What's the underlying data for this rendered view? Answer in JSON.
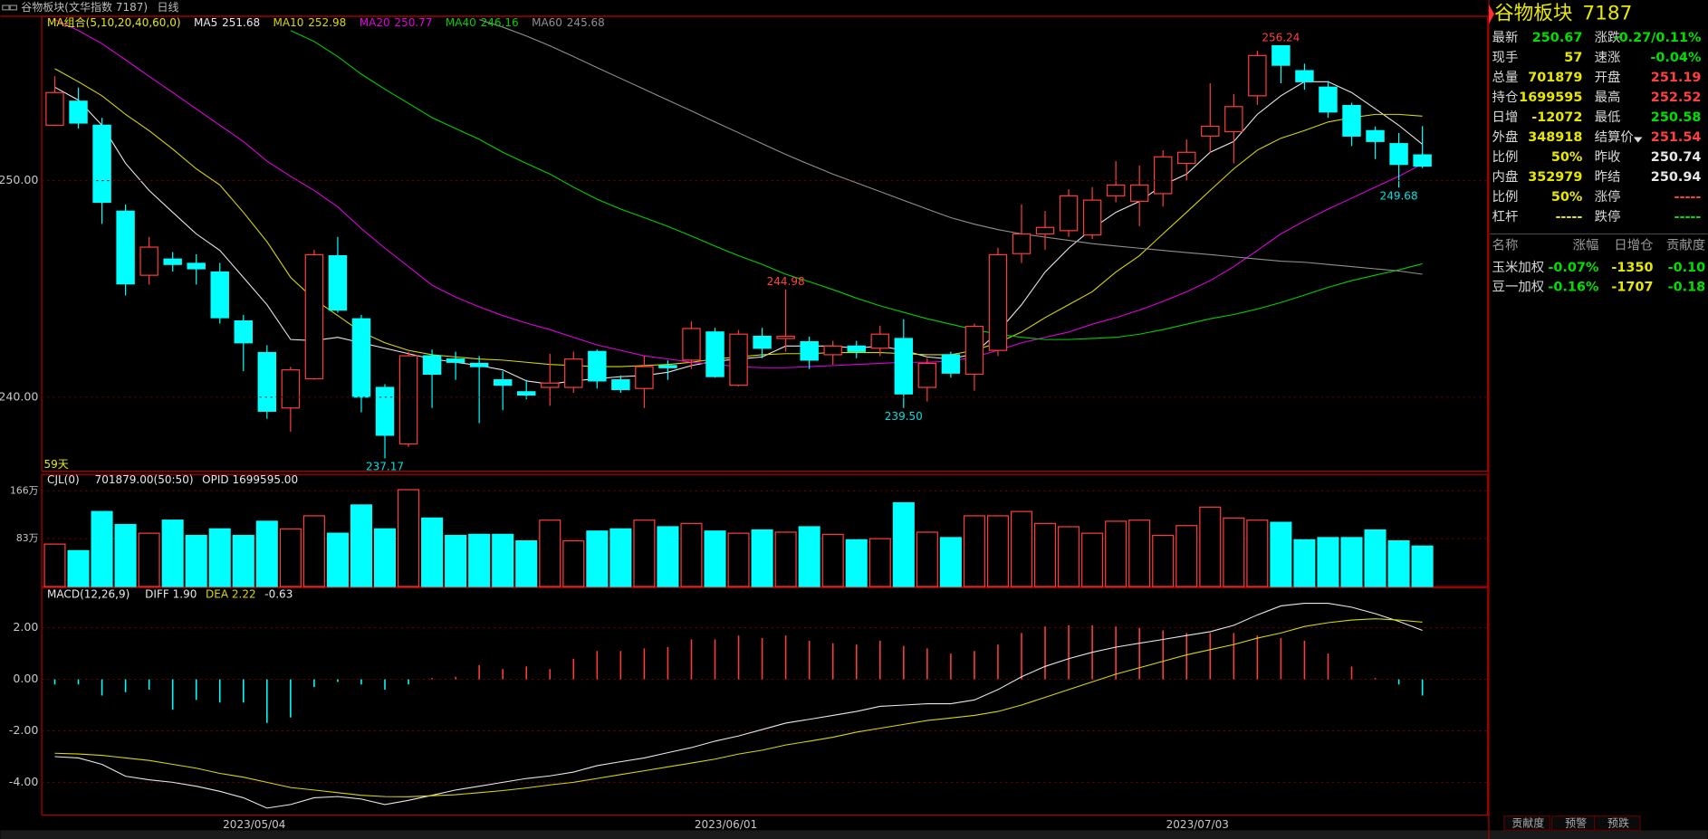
{
  "header": {
    "title": "谷物板块(文华指数 7187)",
    "period": "日线"
  },
  "chart_data": [
    {
      "type": "candlestick",
      "name": "MA组合(5,10,20,40,60,0)",
      "footnote": "59天",
      "categories": [
        null,
        null,
        null,
        null,
        null,
        null,
        null,
        null,
        "2023/05/04",
        null,
        null,
        null,
        null,
        null,
        null,
        null,
        null,
        null,
        null,
        null,
        null,
        null,
        null,
        null,
        null,
        null,
        null,
        null,
        "2023/06/01",
        null,
        null,
        null,
        null,
        null,
        null,
        null,
        null,
        null,
        null,
        null,
        null,
        null,
        null,
        null,
        null,
        null,
        null,
        null,
        "2023/07/03",
        null,
        null,
        null,
        null,
        null,
        null,
        null,
        null,
        null,
        null
      ],
      "open": [
        252.56,
        253.67,
        252.56,
        248.59,
        245.63,
        246.38,
        246.18,
        245.78,
        243.52,
        242.06,
        239.5,
        240.85,
        246.53,
        243.62,
        240.45,
        237.84,
        241.91,
        241.76,
        241.56,
        240.8,
        240.25,
        240.45,
        240.45,
        242.11,
        240.8,
        240.4,
        241.46,
        241.71,
        243.01,
        240.55,
        242.81,
        242.71,
        242.56,
        241.96,
        242.36,
        242.26,
        242.71,
        240.45,
        241.96,
        241.06,
        242.16,
        246.63,
        247.54,
        247.69,
        247.49,
        249.3,
        249.05,
        249.4,
        250.8,
        252.06,
        252.26,
        253.92,
        256.23,
        255.08,
        254.32,
        253.47,
        252.31,
        251.71,
        251.19
      ],
      "high": [
        254.82,
        254.3,
        252.9,
        248.9,
        247.4,
        246.7,
        246.6,
        246.2,
        243.8,
        242.4,
        241.4,
        246.8,
        247.4,
        243.8,
        240.6,
        242.1,
        242.2,
        242.1,
        241.9,
        241.2,
        240.8,
        242.0,
        242.1,
        242.2,
        241.0,
        241.9,
        241.7,
        243.5,
        243.2,
        243.1,
        243.2,
        244.98,
        242.8,
        242.6,
        242.6,
        243.3,
        243.6,
        241.8,
        242.1,
        243.4,
        246.9,
        248.9,
        248.6,
        249.6,
        249.7,
        250.9,
        250.7,
        251.4,
        251.9,
        254.5,
        254.0,
        256.0,
        256.24,
        255.4,
        254.6,
        253.6,
        252.5,
        252.2,
        252.52
      ],
      "low": [
        252.56,
        252.4,
        248.0,
        244.7,
        245.2,
        245.8,
        245.2,
        243.4,
        241.2,
        239.0,
        238.4,
        240.8,
        243.9,
        239.3,
        237.17,
        237.7,
        239.5,
        240.8,
        238.8,
        239.4,
        239.9,
        239.6,
        240.2,
        240.4,
        240.2,
        239.5,
        240.8,
        241.3,
        240.9,
        240.5,
        241.8,
        242.1,
        241.3,
        241.5,
        241.8,
        241.9,
        239.5,
        239.8,
        240.9,
        240.3,
        241.9,
        246.2,
        246.8,
        247.4,
        247.3,
        249.0,
        247.9,
        248.8,
        250.0,
        251.3,
        250.8,
        253.5,
        254.5,
        254.2,
        252.9,
        251.6,
        251.0,
        249.68,
        250.58
      ],
      "close": [
        254.07,
        252.66,
        249.0,
        245.23,
        246.93,
        246.13,
        245.93,
        243.67,
        242.51,
        239.35,
        241.26,
        246.58,
        244.02,
        240.0,
        238.24,
        241.91,
        241.06,
        241.61,
        241.41,
        240.55,
        240.1,
        240.65,
        241.76,
        240.75,
        240.35,
        241.41,
        241.36,
        243.17,
        240.95,
        242.91,
        242.26,
        242.81,
        241.71,
        242.36,
        242.11,
        242.91,
        240.15,
        241.56,
        241.11,
        243.27,
        246.58,
        247.54,
        247.84,
        249.3,
        249.1,
        249.8,
        249.8,
        251.1,
        251.31,
        252.51,
        253.42,
        255.78,
        255.33,
        254.57,
        253.17,
        252.06,
        251.81,
        250.75,
        250.67
      ],
      "high_labels": [
        null,
        null,
        null,
        null,
        null,
        null,
        null,
        null,
        null,
        null,
        null,
        null,
        null,
        null,
        null,
        null,
        null,
        null,
        null,
        null,
        null,
        null,
        null,
        null,
        null,
        null,
        null,
        null,
        null,
        null,
        null,
        "244.98",
        null,
        null,
        null,
        null,
        null,
        null,
        null,
        null,
        null,
        null,
        null,
        null,
        null,
        null,
        null,
        null,
        null,
        null,
        null,
        null,
        "256.24",
        null,
        null,
        null,
        null,
        null,
        null
      ],
      "low_labels": [
        null,
        null,
        null,
        null,
        null,
        null,
        null,
        null,
        null,
        null,
        null,
        null,
        null,
        null,
        "237.17",
        null,
        null,
        null,
        null,
        null,
        null,
        null,
        null,
        null,
        null,
        null,
        null,
        null,
        null,
        null,
        null,
        null,
        null,
        null,
        null,
        null,
        "239.50",
        null,
        null,
        null,
        null,
        null,
        null,
        null,
        null,
        null,
        null,
        null,
        null,
        null,
        null,
        null,
        null,
        null,
        null,
        null,
        null,
        "249.68",
        null
      ],
      "up_color": "#ff3c3c",
      "down_color": "#00ffff",
      "ylim": [
        236.58,
        257.59
      ],
      "yticks": [
        {
          "value": 240,
          "label": "240.00"
        },
        {
          "value": 250,
          "label": "250.00"
        }
      ],
      "grid": true,
      "overlays": [
        {
          "name": "MA5",
          "color": "#e8e8e8",
          "values": [
            254.32,
            253.72,
            252.56,
            250.8,
            249.55,
            248.54,
            247.54,
            246.78,
            245.53,
            244.27,
            242.66,
            242.61,
            242.76,
            242.51,
            242.26,
            242.01,
            241.76,
            241.61,
            241.46,
            241.26,
            240.75,
            240.6,
            240.75,
            240.85,
            240.95,
            241.0,
            241.15,
            241.46,
            241.66,
            241.76,
            241.86,
            242.36,
            242.36,
            242.36,
            242.26,
            242.36,
            242.16,
            241.86,
            241.76,
            242.01,
            243.01,
            244.27,
            245.78,
            246.88,
            247.79,
            248.54,
            249.04,
            249.8,
            250.3,
            251.31,
            251.81,
            253.06,
            253.92,
            254.57,
            254.57,
            254.07,
            253.32,
            252.56,
            251.68
          ]
        },
        {
          "name": "MA10",
          "color": "#d8d800",
          "values": [
            255.17,
            254.57,
            253.92,
            253.06,
            252.31,
            251.46,
            250.55,
            249.8,
            248.54,
            247.18,
            245.53,
            244.52,
            243.77,
            243.01,
            242.51,
            242.16,
            241.96,
            241.86,
            241.76,
            241.71,
            241.61,
            241.51,
            241.46,
            241.41,
            241.41,
            241.46,
            241.51,
            241.61,
            241.76,
            241.86,
            241.96,
            242.01,
            242.01,
            242.06,
            242.06,
            242.06,
            242.01,
            241.96,
            241.96,
            242.16,
            242.51,
            243.01,
            243.67,
            244.27,
            244.87,
            245.78,
            246.53,
            247.54,
            248.54,
            249.55,
            250.55,
            251.41,
            251.96,
            252.31,
            252.71,
            252.91,
            253.06,
            253.06,
            252.98
          ]
        },
        {
          "name": "MA20",
          "color": "#e000e0",
          "values": [
            257.44,
            256.93,
            256.33,
            255.58,
            254.82,
            254.07,
            253.32,
            252.56,
            251.81,
            250.9,
            250.2,
            249.55,
            248.79,
            247.79,
            246.88,
            246.03,
            245.17,
            244.62,
            244.17,
            243.77,
            243.42,
            243.12,
            242.76,
            242.41,
            242.16,
            241.91,
            241.76,
            241.61,
            241.51,
            241.41,
            241.36,
            241.36,
            241.41,
            241.46,
            241.51,
            241.56,
            241.61,
            241.61,
            241.66,
            241.86,
            242.16,
            242.51,
            242.76,
            243.01,
            243.37,
            243.67,
            244.02,
            244.42,
            244.87,
            245.38,
            246.03,
            246.78,
            247.54,
            248.14,
            248.69,
            249.19,
            249.7,
            250.2,
            250.77
          ]
        },
        {
          "name": "MA40",
          "color": "#00d000",
          "values": [
            null,
            null,
            null,
            null,
            null,
            null,
            null,
            null,
            null,
            null,
            256.93,
            256.43,
            255.73,
            254.92,
            254.22,
            253.57,
            252.91,
            252.41,
            251.91,
            251.31,
            250.8,
            250.3,
            249.7,
            249.14,
            248.69,
            248.29,
            247.89,
            247.44,
            246.98,
            246.53,
            246.13,
            245.68,
            245.33,
            244.97,
            244.57,
            244.22,
            243.92,
            243.62,
            243.37,
            243.12,
            242.91,
            242.76,
            242.66,
            242.66,
            242.71,
            242.76,
            242.91,
            243.12,
            243.37,
            243.62,
            243.82,
            244.07,
            244.37,
            244.72,
            245.07,
            245.38,
            245.63,
            245.88,
            246.16
          ]
        },
        {
          "name": "MA60",
          "color": "#909090",
          "values": [
            null,
            null,
            null,
            null,
            null,
            null,
            null,
            null,
            null,
            null,
            null,
            null,
            null,
            null,
            null,
            null,
            null,
            null,
            257.44,
            257.09,
            256.68,
            256.23,
            255.73,
            255.22,
            254.72,
            254.22,
            253.72,
            253.22,
            252.71,
            252.21,
            251.71,
            251.21,
            250.75,
            250.3,
            249.9,
            249.5,
            249.09,
            248.69,
            248.29,
            247.99,
            247.74,
            247.54,
            247.39,
            247.24,
            247.09,
            246.98,
            246.88,
            246.78,
            246.68,
            246.58,
            246.48,
            246.38,
            246.28,
            246.23,
            246.13,
            246.03,
            245.93,
            245.83,
            245.68
          ]
        }
      ]
    },
    {
      "type": "volume",
      "name": "CJL(0)",
      "legend": [
        "701879.00(50:50)",
        "OPID 1699595.00"
      ],
      "values": [
        73.6,
        62.2,
        130.1,
        107.5,
        92.4,
        115.1,
        88.6,
        100.0,
        88.6,
        113.2,
        100.0,
        122.6,
        92.4,
        141.5,
        100.0,
        167.9,
        118.8,
        88.6,
        90.5,
        90.5,
        79.2,
        115.1,
        79.2,
        96.2,
        100.0,
        115.1,
        103.7,
        109.4,
        96.2,
        92.4,
        98.1,
        94.3,
        103.7,
        90.5,
        81.1,
        83.0,
        145.2,
        94.3,
        84.9,
        122.6,
        122.6,
        130.1,
        109.4,
        103.7,
        92.4,
        113.2,
        115.1,
        88.6,
        105.6,
        137.7,
        118.8,
        115.1,
        111.3,
        81.1,
        84.9,
        84.9,
        98.1,
        79.2,
        70.19
      ],
      "ylim": [
        0,
        194.3
      ],
      "yticks": [
        {
          "value": 83,
          "label": "83万"
        },
        {
          "value": 166,
          "label": "166万"
        }
      ],
      "grid": true
    },
    {
      "type": "macd",
      "name": "MACD(12,26,9)",
      "legend": [
        "DIFF 1.90",
        "DEA 2.22",
        "-0.63"
      ],
      "values": [
        -0.2,
        -0.2,
        -0.63,
        -0.5,
        -0.4,
        -1.18,
        -0.8,
        -0.9,
        -0.9,
        -1.69,
        -1.48,
        -0.3,
        -0.1,
        -0.2,
        -0.4,
        -0.2,
        0.05,
        0.1,
        0.55,
        0.4,
        0.5,
        0.4,
        0.8,
        1.1,
        1.1,
        1.2,
        1.25,
        1.55,
        1.55,
        1.7,
        1.6,
        1.7,
        1.5,
        1.4,
        1.35,
        1.5,
        1.3,
        1.2,
        1.0,
        1.1,
        1.35,
        1.8,
        2.05,
        2.1,
        2.1,
        2.05,
        2.0,
        1.9,
        1.8,
        1.8,
        1.8,
        1.7,
        1.6,
        1.5,
        1.0,
        0.5,
        0.05,
        -0.2,
        -0.63
      ],
      "series": [
        {
          "name": "DIFF",
          "color": "#e8e8e8",
          "values": [
            -3.0,
            -3.05,
            -3.3,
            -3.76,
            -3.9,
            -4.0,
            -4.15,
            -4.35,
            -4.6,
            -5.0,
            -4.86,
            -4.6,
            -4.55,
            -4.65,
            -4.86,
            -4.7,
            -4.5,
            -4.3,
            -4.15,
            -4.0,
            -3.85,
            -3.75,
            -3.6,
            -3.35,
            -3.2,
            -3.05,
            -2.85,
            -2.65,
            -2.4,
            -2.2,
            -1.95,
            -1.7,
            -1.55,
            -1.4,
            -1.25,
            -1.05,
            -1.0,
            -0.95,
            -0.95,
            -0.8,
            -0.4,
            0.1,
            0.5,
            0.8,
            1.05,
            1.25,
            1.4,
            1.55,
            1.7,
            1.85,
            2.1,
            2.5,
            2.85,
            2.95,
            2.95,
            2.8,
            2.55,
            2.25,
            1.9
          ]
        },
        {
          "name": "DEA",
          "color": "#d8d800",
          "values": [
            -2.87,
            -2.9,
            -2.95,
            -3.05,
            -3.15,
            -3.3,
            -3.45,
            -3.65,
            -3.8,
            -4.0,
            -4.2,
            -4.3,
            -4.4,
            -4.5,
            -4.55,
            -4.56,
            -4.52,
            -4.48,
            -4.4,
            -4.32,
            -4.22,
            -4.1,
            -4.0,
            -3.85,
            -3.7,
            -3.55,
            -3.4,
            -3.25,
            -3.1,
            -2.9,
            -2.75,
            -2.55,
            -2.4,
            -2.25,
            -2.05,
            -1.9,
            -1.75,
            -1.6,
            -1.5,
            -1.4,
            -1.25,
            -1.0,
            -0.7,
            -0.4,
            -0.1,
            0.2,
            0.45,
            0.7,
            0.95,
            1.15,
            1.35,
            1.6,
            1.8,
            2.05,
            2.2,
            2.3,
            2.35,
            2.3,
            2.22
          ]
        }
      ],
      "ylim": [
        -5.27,
        3.56
      ],
      "yticks": [
        {
          "value": -4,
          "label": "-4.00"
        },
        {
          "value": -2,
          "label": "-2.00"
        },
        {
          "value": 0,
          "label": "0.00"
        },
        {
          "value": 2,
          "label": "2.00"
        }
      ],
      "grid": true
    }
  ],
  "quote": {
    "title": "谷物板块",
    "code": "7187",
    "rows": [
      [
        "最新",
        "250.67",
        "涨跌",
        "-0.27/0.11%"
      ],
      [
        "现手",
        "57",
        "速涨",
        "-0.04%"
      ],
      [
        "总量",
        "701879",
        "开盘",
        "251.19"
      ],
      [
        "持仓",
        "1699595",
        "最高",
        "252.52"
      ],
      [
        "日增",
        "-12072",
        "最低",
        "250.58"
      ],
      [
        "外盘",
        "348918",
        "结算价",
        "251.54"
      ],
      [
        "比例",
        "50%",
        "昨收",
        "250.74"
      ],
      [
        "内盘",
        "352979",
        "昨结",
        "250.94"
      ],
      [
        "比例",
        "50%",
        "涨停",
        "-----"
      ],
      [
        "杠杆",
        "-----",
        "跌停",
        "-----"
      ]
    ],
    "components": {
      "header": [
        "名称",
        "涨幅",
        "日增仓",
        "贡献度"
      ],
      "rows": [
        [
          "玉米加权",
          "-0.07%",
          "-1350",
          "-0.10"
        ],
        [
          "豆一加权",
          "-0.16%",
          "-1707",
          "-0.18"
        ]
      ]
    },
    "tabs": [
      "贡献度",
      "预警",
      "预跌"
    ]
  }
}
